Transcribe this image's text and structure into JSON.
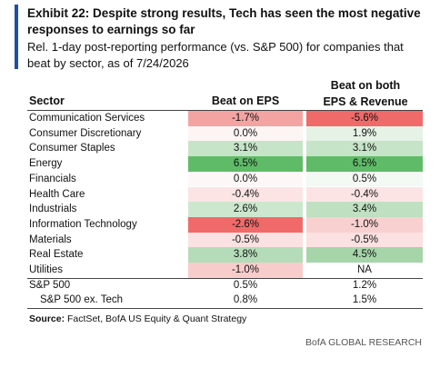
{
  "header": {
    "title": "Exhibit 22: Despite strong results, Tech has seen the most negative responses to earnings so far",
    "subtitle": "Rel. 1-day post-reporting performance (vs. S&P 500) for companies that beat by sector, as of 7/24/2026"
  },
  "table": {
    "columns": [
      "Sector",
      "Beat on EPS",
      "Beat on both EPS & Revenue"
    ],
    "rows": [
      [
        "Communication Services",
        "-1.7%",
        "-5.6%"
      ],
      [
        "Consumer Discretionary",
        "0.0%",
        "1.9%"
      ],
      [
        "Consumer Staples",
        "3.1%",
        "3.1%"
      ],
      [
        "Energy",
        "6.5%",
        "6.5%"
      ],
      [
        "Financials",
        "0.0%",
        "0.5%"
      ],
      [
        "Health Care",
        "-0.4%",
        "-0.4%"
      ],
      [
        "Industrials",
        "2.6%",
        "3.4%"
      ],
      [
        "Information Technology",
        "-2.6%",
        "-1.0%"
      ],
      [
        "Materials",
        "-0.5%",
        "-0.5%"
      ],
      [
        "Real Estate",
        "3.8%",
        "4.5%"
      ],
      [
        "Utilities",
        "-1.0%",
        "NA"
      ]
    ],
    "cell_colors": [
      [
        "#f4a3a3",
        "#f06a6a"
      ],
      [
        "#fdf4f4",
        "#e6f2e6"
      ],
      [
        "#c6e4c8",
        "#c6e4c8"
      ],
      [
        "#5fbb68",
        "#5fbb68"
      ],
      [
        "#fdf7f7",
        "#f3f9f3"
      ],
      [
        "#fce4e4",
        "#fce4e4"
      ],
      [
        "#cde7cf",
        "#bfe0c1"
      ],
      [
        "#f06a6a",
        "#f9d0d0"
      ],
      [
        "#fbe1e1",
        "#fbe1e1"
      ],
      [
        "#b5dcb8",
        "#a6d5aa"
      ],
      [
        "#f9cccc",
        "#ffffff"
      ]
    ],
    "summary_rows": [
      [
        "S&P 500",
        "0.5%",
        "1.2%"
      ],
      [
        "S&P 500 ex. Tech",
        "0.8%",
        "1.5%"
      ]
    ]
  },
  "footer": {
    "source_label": "Source:",
    "source": "FactSet, BofA US Equity & Quant Strategy",
    "brand": "BofA GLOBAL RESEARCH"
  }
}
